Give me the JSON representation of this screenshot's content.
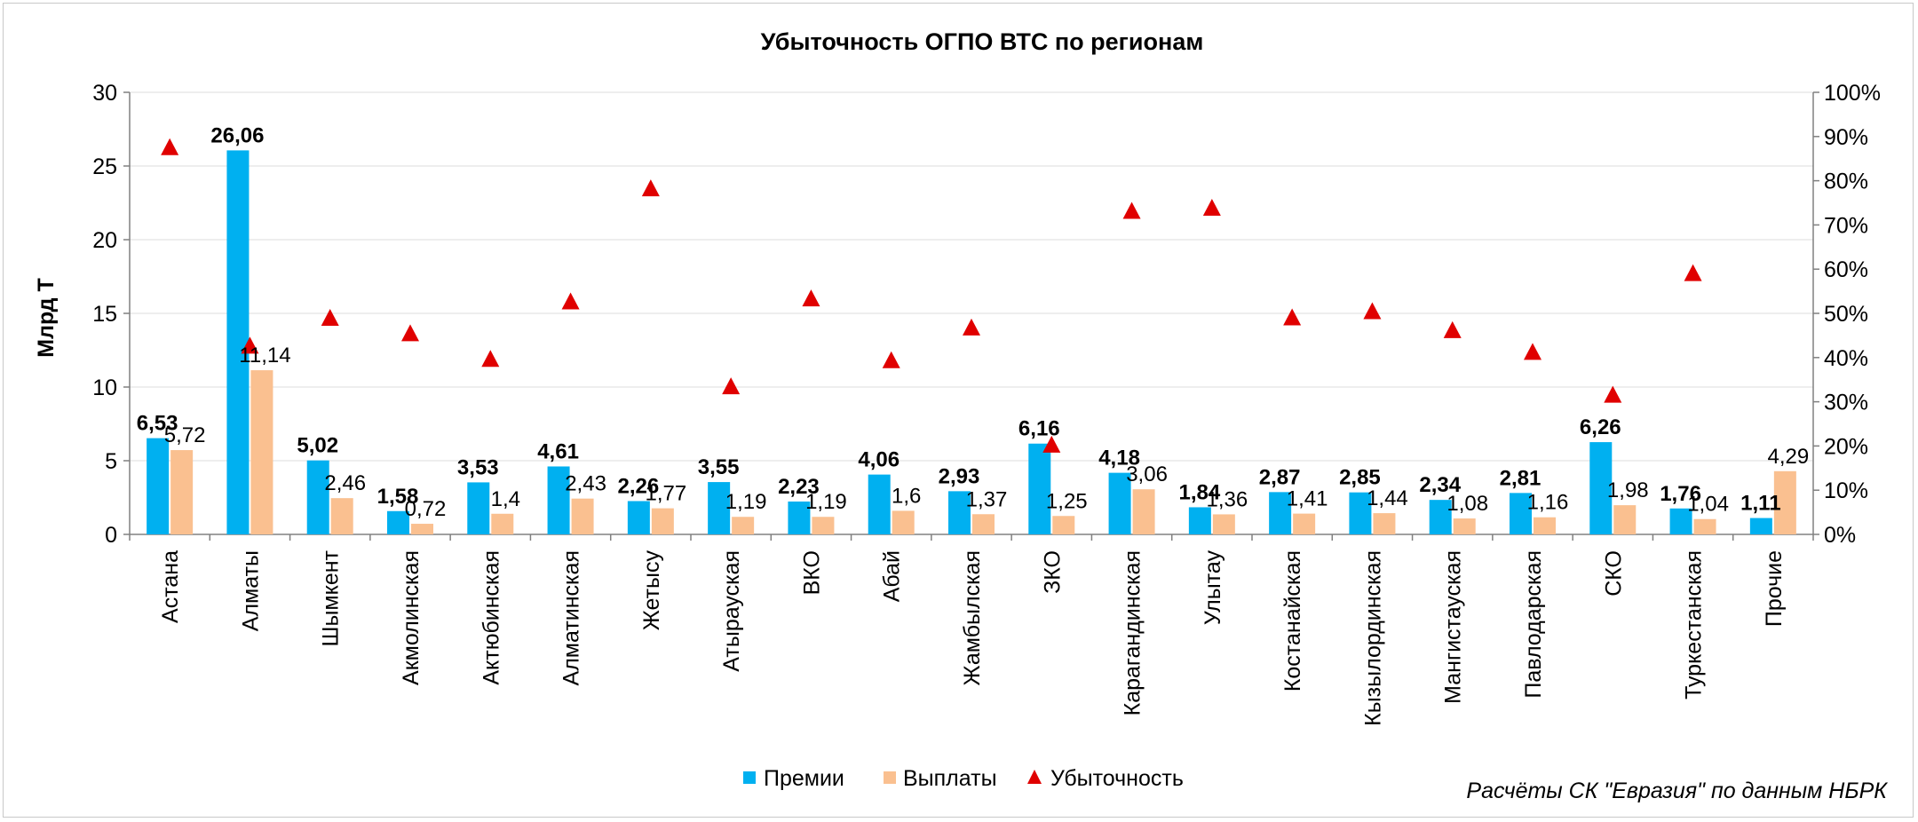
{
  "chart_data": {
    "type": "bar",
    "title": "Убыточность ОГПО ВТС по регионам",
    "ylabel": "Млрд Т",
    "ylim": [
      0,
      30
    ],
    "yticks": [
      "0",
      "5",
      "10",
      "15",
      "20",
      "25",
      "30"
    ],
    "y2lim": [
      0,
      100
    ],
    "y2ticks": [
      "0%",
      "10%",
      "20%",
      "30%",
      "40%",
      "50%",
      "60%",
      "70%",
      "80%",
      "90%",
      "100%"
    ],
    "categories": [
      "Астана",
      "Алматы",
      "Шымкент",
      "Акмолинская",
      "Актюбинская",
      "Алматинская",
      "Жетысу",
      "Атырауская",
      "ВКО",
      "Абай",
      "Жамбылская",
      "ЗКО",
      "Карагандинская",
      "Улытау",
      "Костанайская",
      "Кызылординская",
      "Мангистауская",
      "Павлодарская",
      "СКО",
      "Туркестанская",
      "Прочие"
    ],
    "series": [
      {
        "name": "Премии",
        "type": "bar",
        "axis": "left",
        "color": "#00b0f0",
        "values": [
          6.53,
          26.06,
          5.02,
          1.58,
          3.53,
          4.61,
          2.26,
          3.55,
          2.23,
          4.06,
          2.93,
          6.16,
          4.18,
          1.84,
          2.87,
          2.85,
          2.34,
          2.81,
          6.26,
          1.76,
          1.11
        ],
        "labels": [
          "6,53",
          "26,06",
          "5,02",
          "1,58",
          "3,53",
          "4,61",
          "2,26",
          "3,55",
          "2,23",
          "4,06",
          "2,93",
          "6,16",
          "4,18",
          "1,84",
          "2,87",
          "2,85",
          "2,34",
          "2,81",
          "6,26",
          "1,76",
          "1,11"
        ]
      },
      {
        "name": "Выплаты",
        "type": "bar",
        "axis": "left",
        "color": "#fac090",
        "values": [
          5.72,
          11.14,
          2.46,
          0.72,
          1.4,
          2.43,
          1.77,
          1.19,
          1.19,
          1.6,
          1.37,
          1.25,
          3.06,
          1.36,
          1.41,
          1.44,
          1.08,
          1.16,
          1.98,
          1.04,
          4.29
        ],
        "labels": [
          "5,72",
          "11,14",
          "2,46",
          "0,72",
          "1,4",
          "2,43",
          "1,77",
          "1,19",
          "1,19",
          "1,6",
          "1,37",
          "1,25",
          "3,06",
          "1,36",
          "1,41",
          "1,44",
          "1,08",
          "1,16",
          "1,98",
          "1,04",
          "4,29"
        ]
      },
      {
        "name": "Убыточность",
        "type": "scatter",
        "axis": "right",
        "marker": "triangle",
        "color": "#e00000",
        "values": [
          87.6,
          42.7,
          49,
          45.5,
          39.7,
          52.7,
          78.3,
          33.5,
          53.4,
          39.4,
          46.8,
          20.3,
          73.2,
          73.9,
          49.1,
          50.5,
          46.2,
          41.3,
          31.6,
          59.1,
          null
        ]
      }
    ],
    "grid": true,
    "legend": "bottom",
    "source": "Расчёты СК \"Евразия\" по данным НБРК"
  }
}
